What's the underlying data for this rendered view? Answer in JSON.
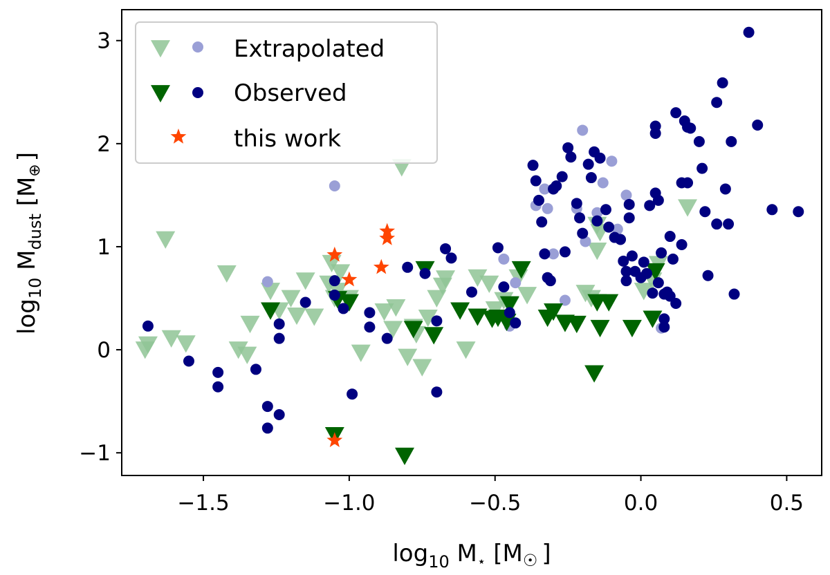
{
  "chart_data": {
    "type": "scatter",
    "title": "",
    "xlabel": {
      "prefix": "log",
      "sub": "10",
      "main": " M",
      "star": "⋆",
      "unit": " [M",
      "unit_sym": "☉",
      "close": "]"
    },
    "ylabel": {
      "prefix": "log",
      "sub": "10",
      "main": " M",
      "subscript": "dust",
      "unit": " [M",
      "unit_sym": "⊕",
      "close": "]"
    },
    "xlim": [
      -1.78,
      0.62
    ],
    "ylim": [
      -1.22,
      3.3
    ],
    "xticks": [
      -1.5,
      -1.0,
      -0.5,
      0.0,
      0.5
    ],
    "xtick_labels": [
      "−1.5",
      "−1.0",
      "−0.5",
      "0.0",
      "0.5"
    ],
    "yticks": [
      -1,
      0,
      1,
      2,
      3
    ],
    "ytick_labels": [
      "−1",
      "0",
      "1",
      "2",
      "3"
    ],
    "legend": {
      "placement": "top-left",
      "entries": [
        {
          "label": "Extrapolated",
          "markers": [
            "triangle-down-light",
            "circle-light"
          ]
        },
        {
          "label": "Observed",
          "markers": [
            "triangle-down-dark",
            "circle-dark"
          ]
        },
        {
          "label": "this work",
          "markers": [
            "star"
          ]
        }
      ]
    },
    "colors": {
      "extrap_triangle": "#8fc495",
      "extrap_circle": "#9a9fd6",
      "obs_triangle": "#006400",
      "obs_circle": "#000080",
      "this_work": "#ff4500"
    },
    "series": [
      {
        "name": "Extrapolated upper limits",
        "marker": "triangle-down",
        "color": "#8fc495",
        "x": [
          -1.7,
          -1.69,
          -1.63,
          -1.61,
          -1.56,
          -1.42,
          -1.38,
          -1.35,
          -1.34,
          -1.27,
          -1.24,
          -1.2,
          -1.18,
          -1.15,
          -1.12,
          -1.07,
          -1.06,
          -1.05,
          -1.04,
          -1.03,
          -1.0,
          -0.96,
          -0.88,
          -0.85,
          -0.84,
          -0.82,
          -0.8,
          -0.78,
          -0.77,
          -0.75,
          -0.73,
          -0.7,
          -0.68,
          -0.67,
          -0.6,
          -0.56,
          -0.52,
          -0.5,
          -0.47,
          -0.45,
          -0.42,
          -0.39,
          -0.19,
          -0.17,
          -0.15,
          -0.15,
          -0.14,
          0.01,
          0.04,
          0.06,
          0.16
        ],
        "y": [
          0.0,
          0.05,
          1.07,
          0.11,
          0.06,
          0.74,
          0.0,
          -0.05,
          0.25,
          0.57,
          0.38,
          0.5,
          0.33,
          0.67,
          0.32,
          0.64,
          0.84,
          0.5,
          0.57,
          0.75,
          0.5,
          -0.03,
          0.37,
          0.2,
          0.41,
          1.77,
          -0.07,
          0.22,
          0.15,
          -0.17,
          0.31,
          0.5,
          0.62,
          0.69,
          0.0,
          0.7,
          0.64,
          0.39,
          0.48,
          0.43,
          0.7,
          0.53,
          0.55,
          0.5,
          1.21,
          0.96,
          1.14,
          0.57,
          0.67,
          0.83,
          1.38
        ]
      },
      {
        "name": "Extrapolated detections",
        "marker": "circle",
        "color": "#9a9fd6",
        "x": [
          -1.28,
          -1.05,
          -0.47,
          -0.45,
          -0.43,
          -0.36,
          -0.33,
          -0.32,
          -0.3,
          -0.26,
          -0.22,
          -0.2,
          -0.19,
          -0.15,
          -0.13,
          -0.1,
          -0.08,
          -0.05,
          0.07
        ],
        "y": [
          0.66,
          1.59,
          0.88,
          0.23,
          0.65,
          1.4,
          1.56,
          1.37,
          0.93,
          0.48,
          1.37,
          2.13,
          1.05,
          1.33,
          1.62,
          1.83,
          1.17,
          1.5,
          0.21
        ]
      },
      {
        "name": "Observed upper limits",
        "marker": "triangle-down",
        "color": "#006400",
        "x": [
          -1.27,
          -1.05,
          -1.04,
          -1.0,
          -0.81,
          -0.78,
          -0.74,
          -0.71,
          -0.62,
          -0.56,
          -0.51,
          -0.49,
          -0.46,
          -0.45,
          -0.41,
          -0.32,
          -0.3,
          -0.26,
          -0.22,
          -0.16,
          -0.15,
          -0.14,
          -0.11,
          -0.03,
          0.04,
          0.05
        ],
        "y": [
          0.38,
          -0.83,
          0.49,
          0.46,
          -1.03,
          0.2,
          0.78,
          0.14,
          0.38,
          0.32,
          0.3,
          0.31,
          0.27,
          0.44,
          0.78,
          0.31,
          0.37,
          0.26,
          0.25,
          -0.23,
          0.46,
          0.21,
          0.46,
          0.21,
          0.3,
          0.76
        ]
      },
      {
        "name": "Observed detections",
        "marker": "circle",
        "color": "#000080",
        "x": [
          -1.69,
          -1.55,
          -1.45,
          -1.45,
          -1.32,
          -1.28,
          -1.28,
          -1.24,
          -1.24,
          -1.24,
          -1.15,
          -1.05,
          -1.05,
          -1.02,
          -0.99,
          -0.93,
          -0.93,
          -0.87,
          -0.8,
          -0.74,
          -0.7,
          -0.7,
          -0.67,
          -0.65,
          -0.58,
          -0.49,
          -0.47,
          -0.45,
          -0.43,
          -0.37,
          -0.36,
          -0.35,
          -0.34,
          -0.33,
          -0.32,
          -0.31,
          -0.3,
          -0.29,
          -0.27,
          -0.26,
          -0.25,
          -0.24,
          -0.22,
          -0.21,
          -0.2,
          -0.18,
          -0.17,
          -0.16,
          -0.15,
          -0.14,
          -0.12,
          -0.11,
          -0.09,
          -0.07,
          -0.06,
          -0.05,
          -0.05,
          -0.04,
          -0.04,
          -0.03,
          -0.02,
          0.0,
          0.01,
          0.02,
          0.03,
          0.04,
          0.05,
          0.05,
          0.05,
          0.06,
          0.06,
          0.07,
          0.08,
          0.08,
          0.08,
          0.09,
          0.09,
          0.1,
          0.1,
          0.11,
          0.12,
          0.12,
          0.14,
          0.14,
          0.15,
          0.16,
          0.16,
          0.17,
          0.2,
          0.21,
          0.22,
          0.23,
          0.26,
          0.26,
          0.28,
          0.29,
          0.3,
          0.31,
          0.32,
          0.37,
          0.4,
          0.45,
          0.54
        ],
        "y": [
          0.23,
          -0.11,
          -0.22,
          -0.36,
          -0.19,
          -0.55,
          -0.76,
          0.25,
          0.11,
          -0.63,
          0.46,
          0.67,
          0.53,
          0.4,
          -0.43,
          0.36,
          0.22,
          0.11,
          0.8,
          0.74,
          0.28,
          -0.41,
          0.98,
          0.89,
          0.56,
          0.99,
          0.61,
          0.36,
          0.26,
          1.79,
          1.64,
          1.45,
          1.24,
          0.93,
          0.7,
          0.67,
          1.56,
          1.59,
          1.68,
          0.95,
          1.96,
          1.87,
          1.42,
          1.28,
          1.13,
          1.8,
          1.67,
          1.92,
          1.25,
          1.86,
          1.36,
          1.19,
          1.09,
          1.07,
          0.86,
          0.76,
          0.67,
          1.41,
          1.28,
          0.91,
          0.76,
          0.7,
          0.85,
          0.74,
          1.4,
          0.55,
          2.17,
          2.1,
          1.52,
          1.45,
          0.65,
          0.94,
          0.54,
          0.3,
          0.22,
          0.56,
          0.55,
          1.1,
          0.52,
          0.88,
          2.3,
          0.45,
          1.62,
          1.02,
          2.22,
          1.62,
          2.16,
          2.15,
          2.02,
          1.76,
          1.34,
          0.72,
          2.4,
          1.22,
          2.59,
          1.56,
          1.22,
          2.02,
          0.54,
          3.08,
          2.18,
          1.36,
          1.34
        ]
      },
      {
        "name": "this work",
        "marker": "star",
        "color": "#ff4500",
        "x": [
          -1.05,
          -1.0,
          -0.89,
          -0.87,
          -0.87,
          -1.05
        ],
        "y": [
          0.92,
          0.68,
          0.8,
          1.15,
          1.08,
          -0.88
        ]
      }
    ]
  }
}
